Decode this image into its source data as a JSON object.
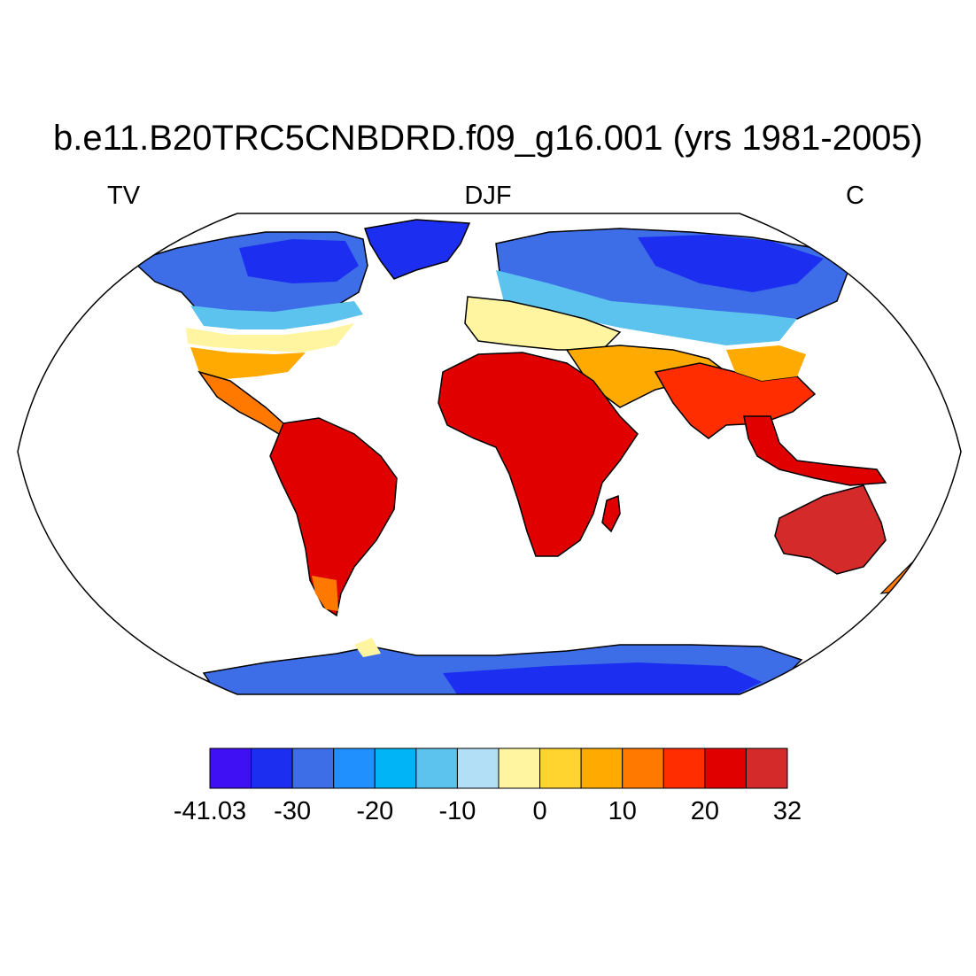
{
  "title": "b.e11.B20TRC5CNBDRD.f09_g16.001 (yrs 1981-2005)",
  "left_label": "TV",
  "center_label": "DJF",
  "right_label": "C",
  "colors": {
    "land_outline": "#000000",
    "ocean": "#ffffff",
    "frame": "#000000"
  },
  "colorbar": {
    "colors": [
      "#4010f5",
      "#1c2ef0",
      "#3d6ee8",
      "#2090ff",
      "#00b4f5",
      "#5cc3ee",
      "#b2dff5",
      "#fff5a0",
      "#ffd42e",
      "#ffaa00",
      "#ff7800",
      "#ff2d00",
      "#e00000",
      "#d42a2a"
    ],
    "labels": [
      "-41.03",
      "-30",
      "-20",
      "-10",
      "0",
      "10",
      "20",
      "32"
    ],
    "label_positions": [
      0,
      2,
      4,
      6,
      8,
      10,
      12,
      14
    ]
  },
  "chart_data": {
    "type": "map",
    "projection": "Robinson",
    "field": "TV",
    "season": "DJF",
    "units": "C",
    "min": -41.03,
    "max": 32
  }
}
